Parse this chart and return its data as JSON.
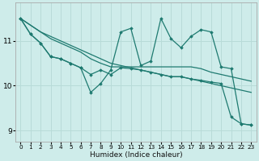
{
  "xlabel": "Humidex (Indice chaleur)",
  "bg_color": "#ceecea",
  "grid_color": "#b8dbd8",
  "line_color": "#1e7a70",
  "xlim": [
    -0.5,
    23.5
  ],
  "ylim": [
    8.75,
    11.85
  ],
  "yticks": [
    9,
    10,
    11
  ],
  "xticks": [
    0,
    1,
    2,
    3,
    4,
    5,
    6,
    7,
    8,
    9,
    10,
    11,
    12,
    13,
    14,
    15,
    16,
    17,
    18,
    19,
    20,
    21,
    22,
    23
  ],
  "series": [
    {
      "x": [
        0,
        1,
        2,
        3,
        4,
        5,
        6,
        7,
        8,
        9,
        10,
        11,
        12,
        13,
        14,
        15,
        16,
        17,
        18,
        19,
        20,
        21,
        22,
        23
      ],
      "y": [
        11.5,
        11.35,
        11.2,
        11.1,
        11.0,
        10.9,
        10.8,
        10.7,
        10.6,
        10.5,
        10.45,
        10.4,
        10.35,
        10.3,
        10.25,
        10.2,
        10.2,
        10.15,
        10.1,
        10.05,
        10.0,
        9.95,
        9.9,
        9.85
      ],
      "marker": null,
      "lw": 0.9
    },
    {
      "x": [
        0,
        1,
        2,
        3,
        4,
        5,
        6,
        7,
        8,
        9,
        10,
        11,
        12,
        13,
        14,
        15,
        16,
        17,
        18,
        19,
        20,
        21,
        22,
        23
      ],
      "y": [
        11.5,
        11.35,
        11.2,
        11.05,
        10.95,
        10.85,
        10.75,
        10.6,
        10.5,
        10.42,
        10.42,
        10.42,
        10.42,
        10.42,
        10.42,
        10.42,
        10.42,
        10.42,
        10.38,
        10.3,
        10.25,
        10.2,
        10.15,
        10.1
      ],
      "marker": null,
      "lw": 0.9
    },
    {
      "x": [
        0,
        1,
        2,
        3,
        4,
        5,
        6,
        7,
        8,
        9,
        10,
        11,
        12,
        13,
        14,
        15,
        16,
        17,
        18,
        19,
        20,
        21,
        22,
        23
      ],
      "y": [
        11.5,
        11.15,
        10.95,
        10.65,
        10.6,
        10.5,
        10.4,
        10.25,
        10.35,
        10.25,
        10.4,
        10.38,
        10.35,
        10.3,
        10.25,
        10.2,
        10.2,
        10.15,
        10.12,
        10.08,
        10.05,
        9.3,
        9.15,
        9.12
      ],
      "marker": "D",
      "lw": 0.9
    },
    {
      "x": [
        0,
        1,
        2,
        3,
        4,
        5,
        6,
        7,
        8,
        9,
        10,
        11,
        12,
        13,
        14,
        15,
        16,
        17,
        18,
        19,
        20,
        21,
        22,
        23
      ],
      "y": [
        11.5,
        11.15,
        10.95,
        10.65,
        10.6,
        10.5,
        10.4,
        9.85,
        10.05,
        10.35,
        11.2,
        11.28,
        10.45,
        10.55,
        11.5,
        11.05,
        10.85,
        11.1,
        11.25,
        11.2,
        10.42,
        10.38,
        9.15,
        9.12
      ],
      "marker": "D",
      "lw": 0.9
    }
  ]
}
